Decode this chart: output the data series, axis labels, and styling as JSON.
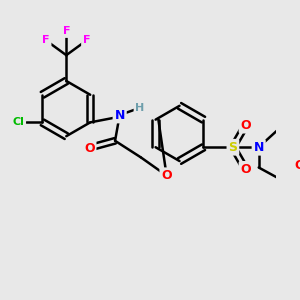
{
  "bg_color": "#e8e8e8",
  "atom_colors": {
    "C": "#000000",
    "H": "#6e9eab",
    "F": "#ff00ff",
    "Cl": "#00bb00",
    "N": "#0000ff",
    "O": "#ff0000",
    "S": "#cccc00"
  },
  "bond_color": "#000000",
  "bond_width": 1.8,
  "figsize": [
    3.0,
    3.0
  ],
  "dpi": 100
}
